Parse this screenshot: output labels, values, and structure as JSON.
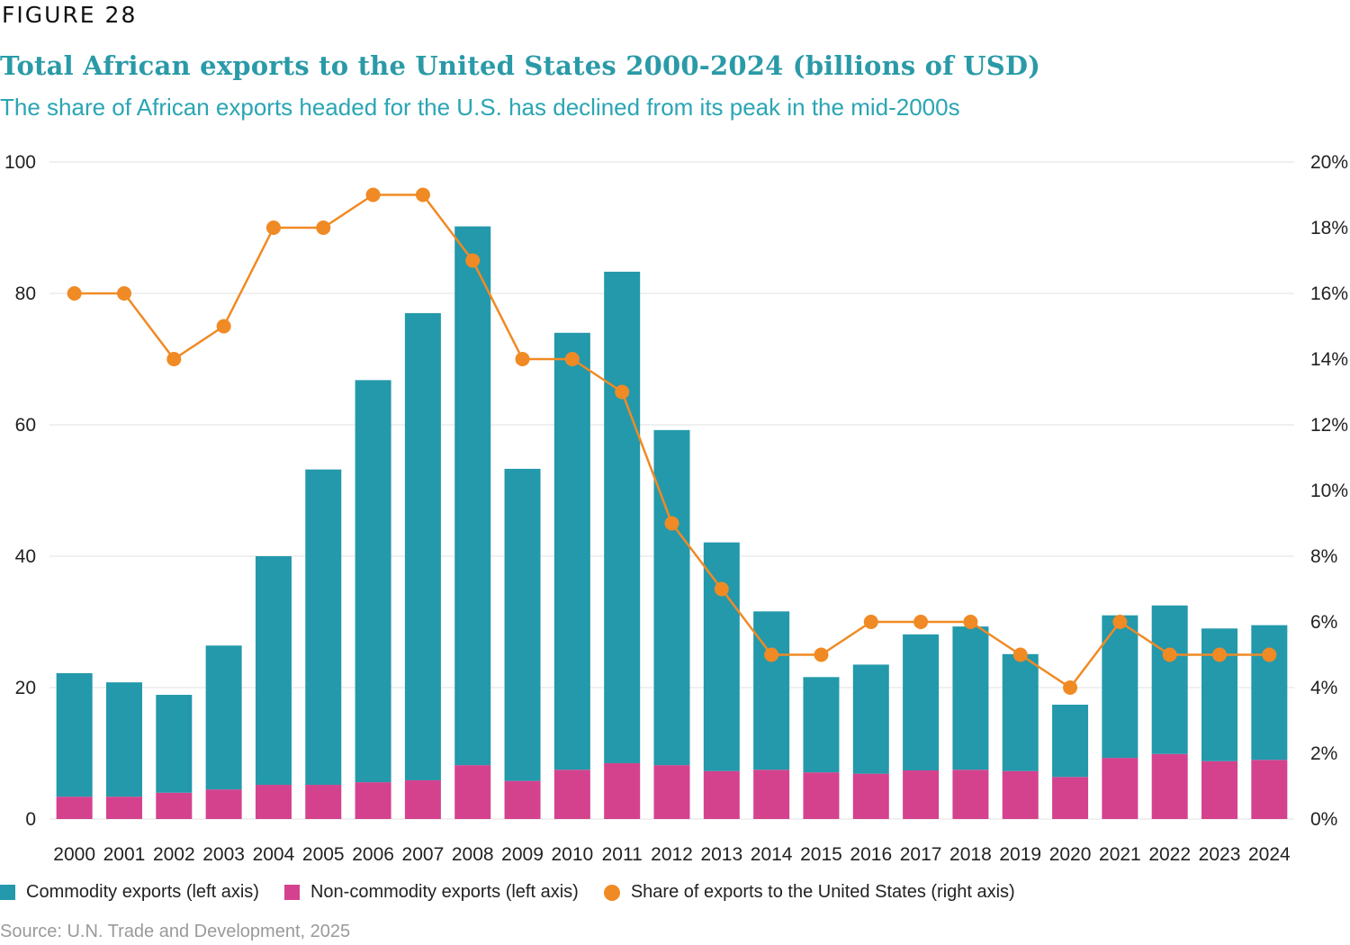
{
  "figure_label": "FIGURE 28",
  "title": "Total African exports to the United States 2000-2024 (billions of USD)",
  "subtitle": "The share of African exports headed for the U.S. has declined from its peak in the mid-2000s",
  "source": "Source: U.N. Trade and Development, 2025",
  "colors": {
    "commodity": "#2399ab",
    "non_commodity": "#d4428e",
    "share": "#f08a24",
    "title": "#2a9aa8",
    "grid": "#e2e2e2"
  },
  "chart_data": {
    "type": "bar",
    "stacked": true,
    "title": "Total African exports to the United States 2000-2024 (billions of USD)",
    "categories": [
      "2000",
      "2001",
      "2002",
      "2003",
      "2004",
      "2005",
      "2006",
      "2007",
      "2008",
      "2009",
      "2010",
      "2011",
      "2012",
      "2013",
      "2014",
      "2015",
      "2016",
      "2017",
      "2018",
      "2019",
      "2020",
      "2021",
      "2022",
      "2023",
      "2024"
    ],
    "series": [
      {
        "name": "Non-commodity exports (left axis)",
        "type": "bar",
        "axis": "left",
        "values": [
          3.4,
          3.4,
          4.0,
          4.5,
          5.2,
          5.2,
          5.6,
          5.9,
          8.2,
          5.8,
          7.5,
          8.5,
          8.2,
          7.3,
          7.5,
          7.1,
          6.9,
          7.4,
          7.5,
          7.3,
          6.4,
          9.3,
          9.9,
          8.8,
          9.0
        ]
      },
      {
        "name": "Commodity exports (left axis)",
        "type": "bar",
        "axis": "left",
        "values": [
          18.8,
          17.4,
          14.9,
          21.9,
          34.8,
          48.0,
          61.2,
          71.1,
          82.0,
          47.5,
          66.5,
          74.8,
          51.0,
          34.8,
          24.1,
          14.5,
          16.6,
          20.7,
          21.8,
          17.8,
          11.0,
          21.7,
          22.6,
          20.2,
          20.5
        ]
      },
      {
        "name": "Share of exports to the United States (right axis)",
        "type": "line",
        "axis": "right",
        "unit": "%",
        "values": [
          16,
          16,
          14,
          15,
          18,
          18,
          19,
          19,
          17,
          14,
          14,
          13,
          9,
          7,
          5,
          5,
          6,
          6,
          6,
          5,
          4,
          6,
          5,
          5,
          5
        ]
      }
    ],
    "left_axis": {
      "label": "",
      "ylim": [
        0,
        100
      ],
      "ticks": [
        "0",
        "20",
        "40",
        "60",
        "80",
        "100"
      ]
    },
    "right_axis": {
      "label": "",
      "ylim": [
        0,
        20
      ],
      "ticks": [
        "0%",
        "2%",
        "4%",
        "6%",
        "8%",
        "10%",
        "12%",
        "14%",
        "16%",
        "18%",
        "20%"
      ]
    },
    "xlabel": "",
    "grid": true,
    "legend": {
      "placement": "bottom-left",
      "entries": [
        "Commodity exports (left axis)",
        "Non-commodity exports (left axis)",
        "Share of exports to the United States (right axis)"
      ]
    }
  }
}
